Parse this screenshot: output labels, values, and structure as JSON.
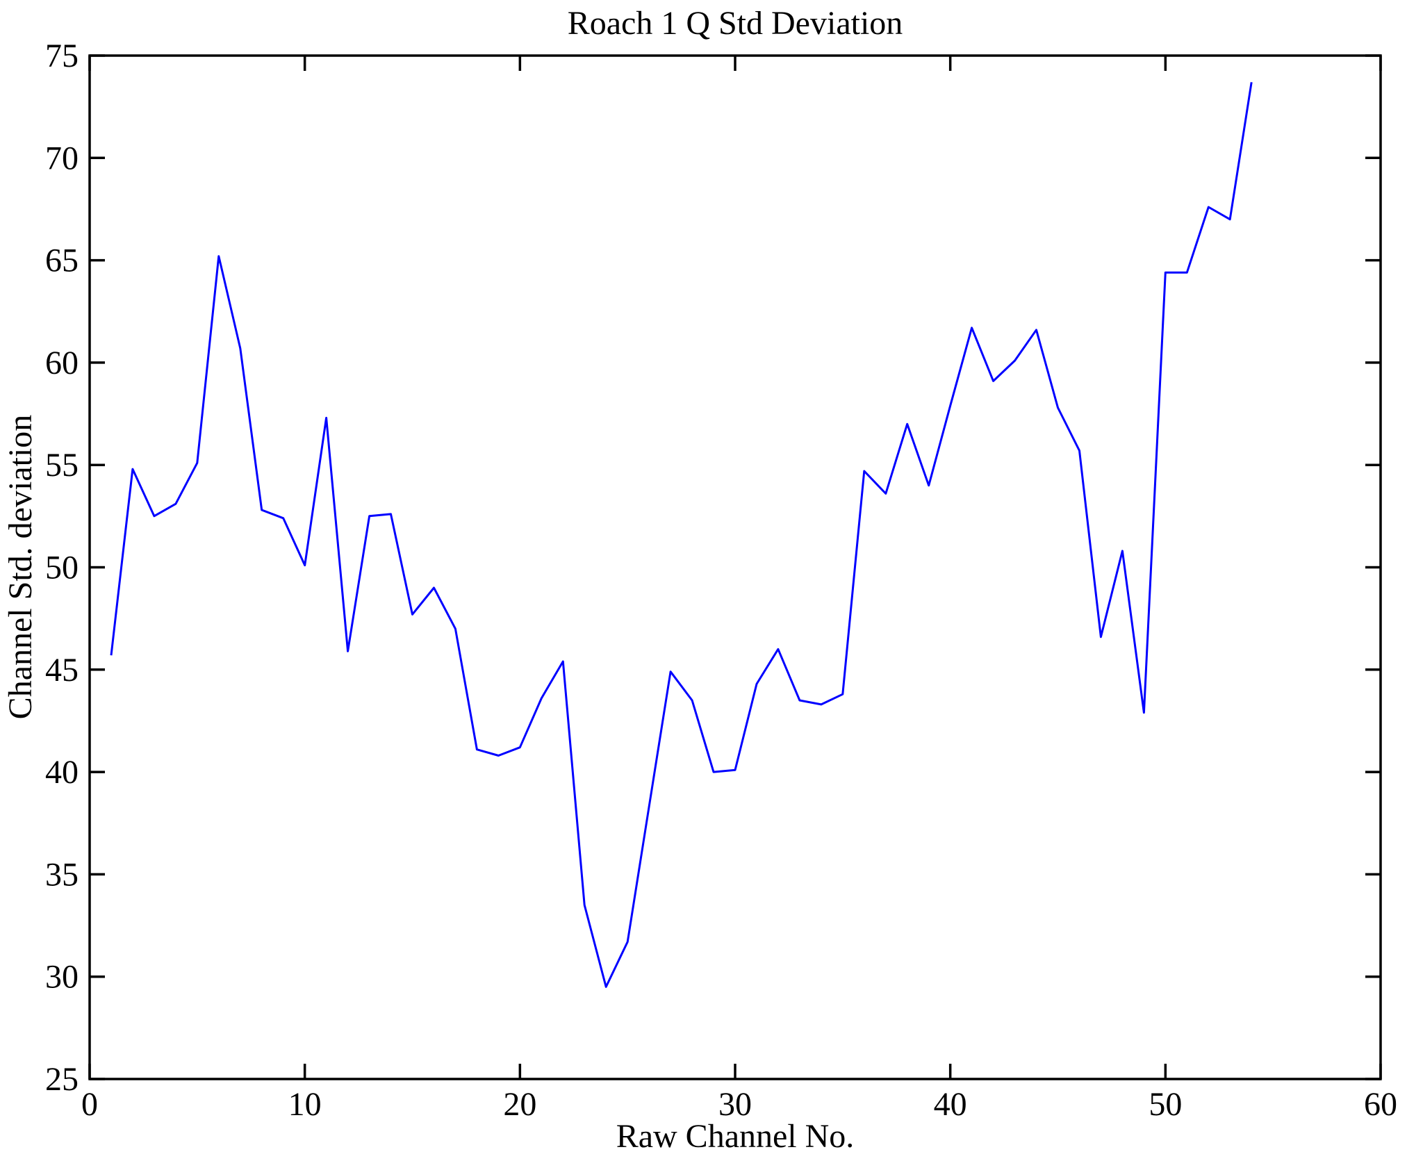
{
  "figure": {
    "background_color": "#FFFFFF",
    "text_color": "#000000"
  },
  "chart_data": {
    "type": "line",
    "title": "Roach 1 Q Std Deviation",
    "xlabel": "Raw Channel No.",
    "ylabel": "Channel Std. deviation",
    "xlim": [
      0,
      60
    ],
    "ylim": [
      25,
      75
    ],
    "xticks": [
      0,
      10,
      20,
      30,
      40,
      50,
      60
    ],
    "yticks": [
      25,
      30,
      35,
      40,
      45,
      50,
      55,
      60,
      65,
      70,
      75
    ],
    "grid": false,
    "legend": "none",
    "box": true,
    "line_color": "#0000FF",
    "axis_color": "#000000",
    "x": [
      1,
      2,
      3,
      4,
      5,
      6,
      7,
      8,
      9,
      10,
      11,
      12,
      13,
      14,
      15,
      16,
      17,
      18,
      19,
      20,
      21,
      22,
      23,
      24,
      25,
      26,
      27,
      28,
      29,
      30,
      31,
      32,
      33,
      34,
      35,
      36,
      37,
      38,
      39,
      40,
      41,
      42,
      43,
      44,
      45,
      46,
      47,
      48,
      49,
      50,
      51,
      52,
      53,
      54
    ],
    "y": [
      45.7,
      54.8,
      52.5,
      53.1,
      55.1,
      65.2,
      60.7,
      52.8,
      52.4,
      50.1,
      57.3,
      45.9,
      52.5,
      52.6,
      47.7,
      49.0,
      47.0,
      41.1,
      40.8,
      41.2,
      43.6,
      45.4,
      33.5,
      29.5,
      31.7,
      38.3,
      44.9,
      43.5,
      40.0,
      40.1,
      44.3,
      46.0,
      43.5,
      43.3,
      43.8,
      54.7,
      53.6,
      57.0,
      54.0,
      57.9,
      61.7,
      59.1,
      60.1,
      61.6,
      57.8,
      55.7,
      46.6,
      50.8,
      42.9,
      64.4,
      64.4,
      67.6,
      67.0,
      73.7
    ]
  }
}
